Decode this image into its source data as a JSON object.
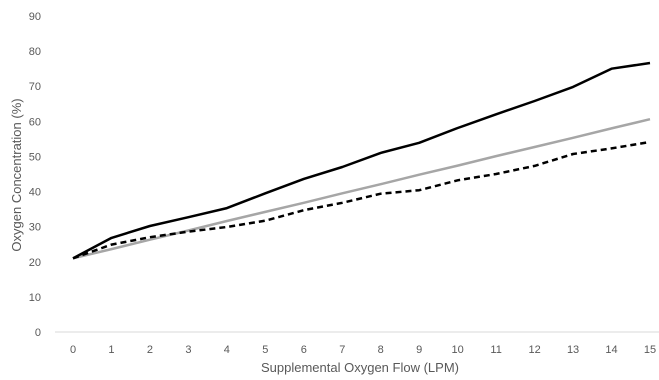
{
  "chart_data": {
    "type": "line",
    "title": "",
    "xlabel": "Supplemental Oxygen Flow (LPM)",
    "ylabel": "Oxygen Concentration (%)",
    "ylim": [
      0,
      90
    ],
    "yticks": [
      0,
      10,
      20,
      30,
      40,
      50,
      60,
      70,
      80,
      90
    ],
    "x": [
      0,
      1,
      2,
      3,
      4,
      5,
      6,
      7,
      8,
      9,
      10,
      11,
      12,
      13,
      14,
      15
    ],
    "grid": false,
    "legend": "none",
    "series": [
      {
        "color": "#000000",
        "style": "solid",
        "values": [
          21,
          26.8,
          30.2,
          32.7,
          35.3,
          39.5,
          43.6,
          47,
          51,
          53.9,
          58.1,
          62,
          65.8,
          69.8,
          75,
          76.6
        ]
      },
      {
        "color": "#a6a6a6",
        "style": "solid",
        "values": [
          21,
          23.6,
          26.3,
          28.9,
          31.6,
          34.2,
          36.8,
          39.5,
          42.1,
          44.8,
          47.4,
          50.1,
          52.7,
          55.3,
          58,
          60.6
        ]
      },
      {
        "color": "#000000",
        "style": "dashed",
        "values": [
          21,
          24.9,
          27,
          28.6,
          29.9,
          31.7,
          34.7,
          36.8,
          39.4,
          40.4,
          43.2,
          45,
          47.3,
          50.7,
          52.3,
          54.1
        ]
      }
    ]
  }
}
